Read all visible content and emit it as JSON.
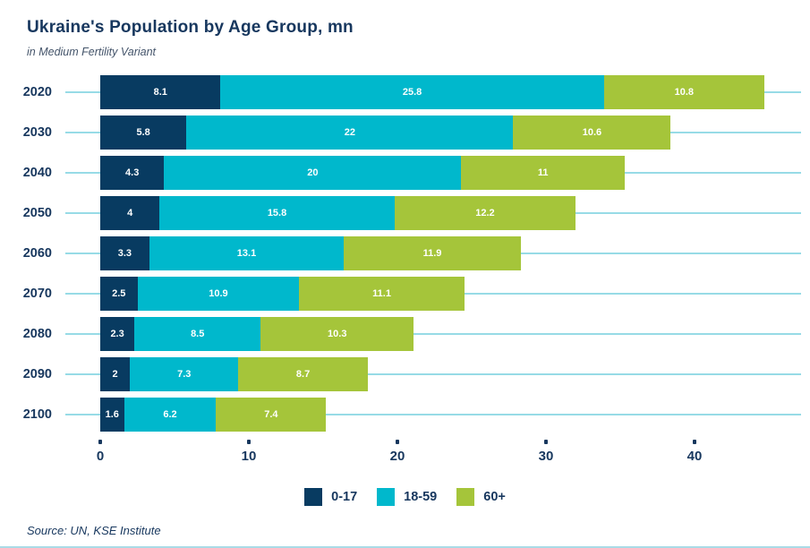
{
  "header": {
    "title": "Ukraine's Population by Age Group, mn",
    "subtitle": "in Medium Fertility Variant"
  },
  "chart_data": {
    "type": "bar",
    "orientation": "horizontal",
    "stacked": true,
    "title": "Ukraine's Population by Age Group, mn",
    "subtitle": "in Medium Fertility Variant",
    "categories": [
      "2020",
      "2030",
      "2040",
      "2050",
      "2060",
      "2070",
      "2080",
      "2090",
      "2100"
    ],
    "series": [
      {
        "name": "0-17",
        "color": "#083b61",
        "values": [
          8.1,
          5.8,
          4.3,
          4,
          3.3,
          2.5,
          2.3,
          2,
          1.6
        ]
      },
      {
        "name": "18-59",
        "color": "#00b8cc",
        "values": [
          25.8,
          22,
          20,
          15.8,
          13.1,
          10.9,
          8.5,
          7.3,
          6.2
        ]
      },
      {
        "name": "60+",
        "color": "#a5c53a",
        "values": [
          10.8,
          10.6,
          11,
          12.2,
          11.9,
          11.1,
          10.3,
          8.7,
          7.4
        ]
      }
    ],
    "x_ticks": [
      0,
      10,
      20,
      30,
      40
    ],
    "xlim": [
      0,
      47
    ],
    "ylabel": "",
    "xlabel": "",
    "legend_position": "bottom",
    "gridlines": "horizontal",
    "gridline_color": "#97dbe6",
    "value_labels": "inside-white",
    "text_color": "#17375e"
  },
  "footer": {
    "source": "Source: UN, KSE Institute"
  }
}
